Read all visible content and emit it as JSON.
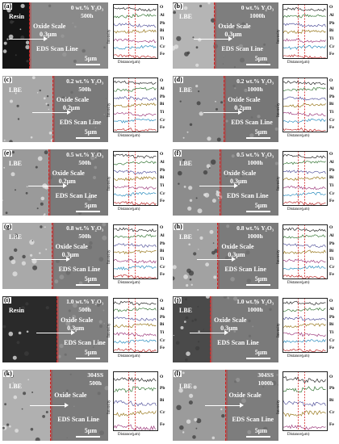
{
  "panels": [
    {
      "id": "a",
      "label": "(a)",
      "phase": "Resin",
      "cond_line1": "0 wt.% Y₂O₃",
      "cond_line2": "500h",
      "oxide": "Oxide Scale",
      "thick": "0.3μm",
      "scan": "EDS Scan Line",
      "scale": "5μm",
      "elements": [
        "O",
        "Al",
        "Pb",
        "Bi",
        "Ti",
        "Cr",
        "Fe"
      ],
      "xlabel": "Distance(μm)",
      "ylabel": "Intensity",
      "left_color": "#151515",
      "right_color": "#8a8a8a"
    },
    {
      "id": "b",
      "label": "(b)",
      "phase": "LBE",
      "cond_line1": "0 wt.% Y₂O₃",
      "cond_line2": "1000h",
      "oxide": "Oxide Scale",
      "thick": "0.3μm",
      "scan": "EDS Scan Line",
      "scale": "5μm",
      "elements": [
        "O",
        "Al",
        "Pb",
        "Bi",
        "Ti",
        "Cr",
        "Fe"
      ],
      "xlabel": "Distance(μm)",
      "ylabel": "Intensity",
      "left_color": "#b5b5b5",
      "right_color": "#7e7e7e"
    },
    {
      "id": "c",
      "label": "(c)",
      "phase": "LBE",
      "cond_line1": "0.2 wt.% Y₂O₃",
      "cond_line2": "500h",
      "oxide": "Oxide Scale",
      "thick": "0.2μm",
      "scan": "EDS Scan Line",
      "scale": "5μm",
      "elements": [
        "O",
        "Al",
        "Pb",
        "Bi",
        "Ti",
        "Cr",
        "Fe"
      ],
      "xlabel": "Distance(μm)",
      "ylabel": "Intensity",
      "left_color": "#a7a7a7",
      "right_color": "#7a7a7a"
    },
    {
      "id": "d",
      "label": "(d)",
      "phase": "LBE",
      "cond_line1": "0.2 wt.% Y₂O₃",
      "cond_line2": "1000h",
      "oxide": "Oxide Scale",
      "thick": "0.2μm",
      "scan": "EDS Scan Line",
      "scale": "5μm",
      "elements": [
        "O",
        "Al",
        "Pb",
        "Bi",
        "Ti",
        "Cr",
        "Fe"
      ],
      "xlabel": "Distance(μm)",
      "ylabel": "Intensity",
      "left_color": "#8f8f8f",
      "right_color": "#777777"
    },
    {
      "id": "e",
      "label": "(e)",
      "phase": "LBE",
      "cond_line1": "0.5 wt.% Y₂O₃",
      "cond_line2": "500h",
      "oxide": "Oxide Scale",
      "thick": "0.2μm",
      "scan": "EDS Scan Line",
      "scale": "5μm",
      "elements": [
        "O",
        "Al",
        "Pb",
        "Bi",
        "Ti",
        "Cr",
        "Fe"
      ],
      "xlabel": "Distance(μm)",
      "ylabel": "Intensity",
      "left_color": "#9a9a9a",
      "right_color": "#7a7a7a"
    },
    {
      "id": "f",
      "label": "(f)",
      "phase": "LBE",
      "cond_line1": "0.5 wt.% Y₂O₃",
      "cond_line2": "1000h",
      "oxide": "Oxide Scale",
      "thick": "0.3μm",
      "scan": "EDS Scan Line",
      "scale": "5μm",
      "elements": [
        "O",
        "Al",
        "Pb",
        "Bi",
        "Ti",
        "Cr",
        "Fe"
      ],
      "xlabel": "Distance(μm)",
      "ylabel": "Intensity",
      "left_color": "#8c8c8c",
      "right_color": "#7b7b7b"
    },
    {
      "id": "g",
      "label": "(g)",
      "phase": "LBE",
      "cond_line1": "0.8 wt.% Y₂O₃",
      "cond_line2": "500h",
      "oxide": "Oxide Scale",
      "thick": "0.3μm",
      "scan": "EDS Scan Line",
      "scale": "5μm",
      "elements": [
        "O",
        "Al",
        "Pb",
        "Bi",
        "Ti",
        "Cr",
        "Fe"
      ],
      "xlabel": "Distance(μm)",
      "ylabel": "Intensity",
      "left_color": "#a9a9a9",
      "right_color": "#7c7c7c"
    },
    {
      "id": "h",
      "label": "(h)",
      "phase": "LBE",
      "cond_line1": "0.8 wt.% Y₂O₃",
      "cond_line2": "1000h",
      "oxide": "Oxide Scale",
      "thick": "0.3μm",
      "scan": "EDS Scan Line",
      "scale": "5μm",
      "elements": [
        "O",
        "Al",
        "Pb",
        "Bi",
        "Ti",
        "Cr",
        "Fe"
      ],
      "xlabel": "Distance(μm)",
      "ylabel": "Intensity",
      "left_color": "#a2a2a2",
      "right_color": "#7b7b7b"
    },
    {
      "id": "i",
      "label": "(i)",
      "phase": "Resin",
      "cond_line1": "1.0 wt.% Y₂O₃",
      "cond_line2": "500h",
      "oxide": "Oxide Scale",
      "thick": "0.3μm",
      "scan": "EDS Scan Line",
      "scale": "5μm",
      "elements": [
        "O",
        "Al",
        "Pb",
        "Bi",
        "Ti",
        "Cr",
        "Fe"
      ],
      "xlabel": "Distance(μm)",
      "ylabel": "Intensity",
      "left_color": "#2a2a2a",
      "right_color": "#7f7f7f"
    },
    {
      "id": "j",
      "label": "(j)",
      "phase": "LBE",
      "cond_line1": "1.0 wt.% Y₂O₃",
      "cond_line2": "1000h",
      "oxide": "Oxide Scale",
      "thick": "0.3μm",
      "scan": "EDS Scan Line",
      "scale": "5μm",
      "elements": [
        "O",
        "Al",
        "Pb",
        "Bi",
        "Ti",
        "Cr",
        "Fe"
      ],
      "xlabel": "Distance(μm)",
      "ylabel": "Intensity",
      "left_color": "#4a4a4a",
      "right_color": "#7a7a7a"
    },
    {
      "id": "k",
      "label": "(k)",
      "phase": "LBE",
      "cond_line1": "304SS",
      "cond_line2": "500h",
      "oxide": "Oxide Scale",
      "thick": "",
      "scan": "EDS Scan Line",
      "scale": "5μm",
      "elements": [
        "O",
        "Pb",
        "Bi",
        "Cr",
        "Fe"
      ],
      "xlabel": "Distance(μm)",
      "ylabel": "Intensity",
      "left_color": "#b0b0b0",
      "right_color": "#7b7b7b"
    },
    {
      "id": "l",
      "label": "(l)",
      "phase": "LBE",
      "cond_line1": "304SS",
      "cond_line2": "1000h",
      "oxide": "Oxide Scale",
      "thick": "",
      "scan": "EDS Scan Line",
      "scale": "5μm",
      "elements": [
        "O",
        "Pb",
        "Bi",
        "Cr",
        "Fe"
      ],
      "xlabel": "Distance(μm)",
      "ylabel": "Intensity",
      "left_color": "#9b9b9b",
      "right_color": "#7d7d7d"
    }
  ],
  "colors": {
    "oxide_line": "#d32020",
    "trace_colors": [
      "#2a2a2a",
      "#3a7a3a",
      "#5a5aa0",
      "#9a7a20",
      "#a04080",
      "#2f8fbf",
      "#c03030"
    ]
  }
}
